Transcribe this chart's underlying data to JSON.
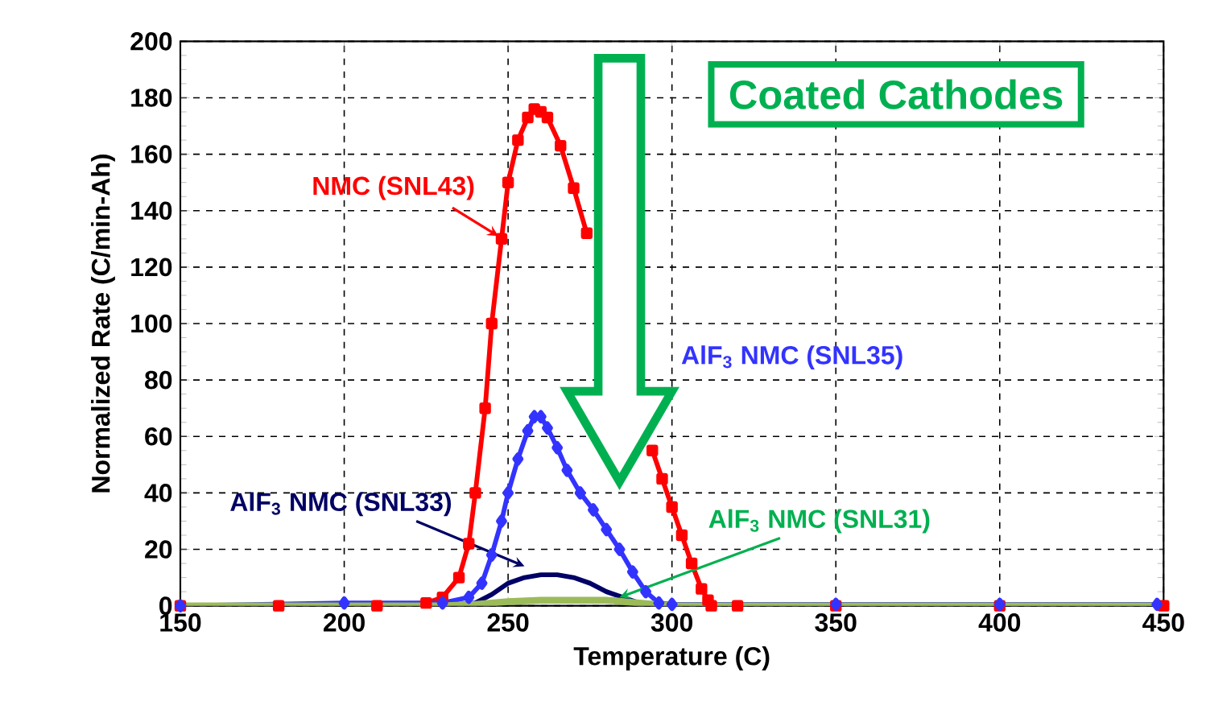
{
  "chart_data": {
    "type": "line",
    "xlabel": "Temperature (C)",
    "ylabel": "Normalized Rate (C/min-Ah)",
    "xlim": [
      150,
      450
    ],
    "ylim": [
      0,
      200
    ],
    "xticks": [
      150,
      200,
      250,
      300,
      350,
      400,
      450
    ],
    "yticks": [
      0,
      20,
      40,
      60,
      80,
      100,
      120,
      140,
      160,
      180,
      200
    ],
    "grid": true,
    "annotations": [
      "Coated Cathodes"
    ],
    "series": [
      {
        "name": "NMC (SNL43)",
        "color": "#ff0000",
        "marker": "square",
        "x": [
          150,
          180,
          210,
          225,
          230,
          235,
          238,
          240,
          243,
          245,
          248,
          250,
          253,
          256,
          258,
          260,
          262,
          266,
          270,
          274,
          277,
          292,
          294,
          297,
          300,
          303,
          306,
          309,
          311,
          312,
          320,
          350,
          400,
          450
        ],
        "values": [
          0,
          0,
          0,
          1,
          3,
          10,
          22,
          40,
          70,
          100,
          130,
          150,
          165,
          173,
          176,
          175,
          173,
          163,
          148,
          132,
          null,
          null,
          55,
          45,
          35,
          25,
          15,
          6,
          2,
          0,
          0,
          0,
          0,
          0
        ]
      },
      {
        "name": "AlF$_{3}$ NMC (SNL35)",
        "color": "#3333ff",
        "marker": "diamond",
        "x": [
          150,
          200,
          230,
          238,
          242,
          245,
          248,
          250,
          253,
          256,
          258,
          260,
          262,
          265,
          268,
          272,
          276,
          280,
          284,
          288,
          292,
          296,
          300,
          350,
          400,
          448
        ],
        "values": [
          0,
          1,
          1,
          3,
          8,
          18,
          30,
          40,
          52,
          62,
          67,
          67,
          63,
          56,
          48,
          40,
          34,
          27,
          20,
          12,
          5,
          1,
          0.5,
          0.5,
          0.5,
          0.5
        ]
      },
      {
        "name": "AlF$_{3}$ NMC (SNL33)",
        "color": "#000066",
        "marker": "none",
        "x": [
          150,
          230,
          240,
          245,
          250,
          255,
          260,
          265,
          270,
          275,
          280,
          285,
          290,
          295,
          300
        ],
        "values": [
          0,
          0,
          1,
          4,
          8,
          10,
          11,
          11,
          10,
          8,
          5,
          3,
          1,
          0,
          0
        ]
      },
      {
        "name": "AlF$_{3}$ NMC (SNL31)",
        "color": "#9bbb59",
        "marker": "none",
        "x": [
          150,
          230,
          240,
          250,
          260,
          270,
          280,
          290,
          300,
          350,
          400,
          450
        ],
        "values": [
          0,
          0,
          0.5,
          1.5,
          2,
          2,
          2,
          1,
          0,
          0,
          0,
          0
        ]
      }
    ]
  }
}
